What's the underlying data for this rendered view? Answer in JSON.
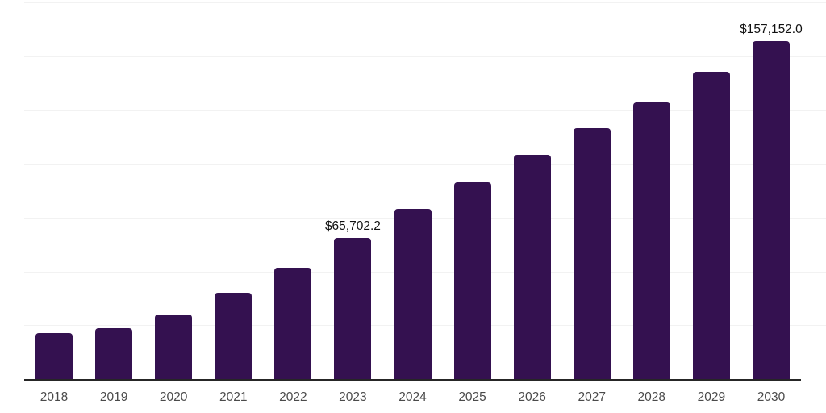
{
  "chart_data": {
    "type": "bar",
    "title": "",
    "xlabel": "",
    "ylabel": "",
    "categories": [
      "2018",
      "2019",
      "2020",
      "2021",
      "2022",
      "2023",
      "2024",
      "2025",
      "2026",
      "2027",
      "2028",
      "2029",
      "2030"
    ],
    "values": [
      21500,
      23700,
      29900,
      40100,
      51800,
      65702.2,
      78900,
      91400,
      104000,
      116500,
      128700,
      142800,
      157152.0
    ],
    "bar_labels": [
      "",
      "",
      "",
      "",
      "",
      "$65,702.2",
      "",
      "",
      "",
      "",
      "",
      "",
      "$157,152.0"
    ],
    "ylim": [
      0,
      175000
    ],
    "gridline_step": 25000,
    "grid": true,
    "legend": false,
    "y_axis_labels_visible": false
  },
  "style": {
    "bar_color": "#341150",
    "grid_color": "#f2f2f2",
    "axis_color": "#262626",
    "data_label_color": "#111111",
    "tick_label_color": "#4a4a4a",
    "background": "#ffffff"
  }
}
